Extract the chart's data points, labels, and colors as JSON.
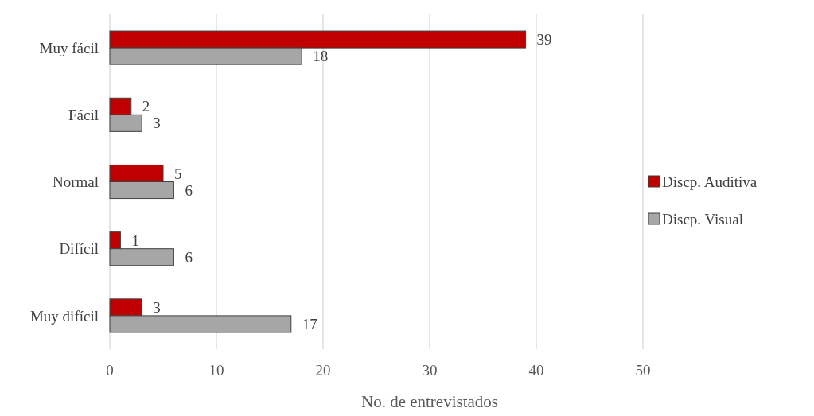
{
  "chart_data": {
    "type": "bar",
    "orientation": "horizontal",
    "xlabel": "No. de entrevistados",
    "categories": [
      "Muy fácil",
      "Fácil",
      "Normal",
      "Difícil",
      "Muy difícil"
    ],
    "series": [
      {
        "name": "Discp. Auditiva",
        "color": "#c00000",
        "values": [
          39,
          2,
          5,
          1,
          3
        ]
      },
      {
        "name": "Discp. Visual",
        "color": "#a6a6a6",
        "values": [
          18,
          3,
          6,
          6,
          17
        ]
      }
    ],
    "xlim": [
      0,
      50
    ],
    "xticks": [
      0,
      10,
      20,
      30,
      40,
      50
    ],
    "grid": "x",
    "legend": "right",
    "data_labels": true
  }
}
